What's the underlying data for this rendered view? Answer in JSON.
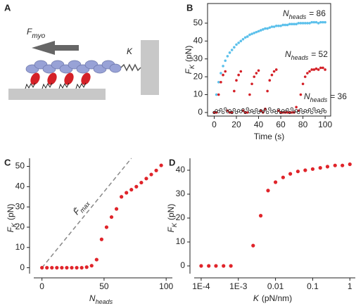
{
  "diagram": {
    "panel_label": "A",
    "force_label": {
      "text": "F",
      "subscript": "myo"
    },
    "spring_label": "K"
  },
  "chart_data": [
    {
      "type": "scatter",
      "panel_label": "B",
      "x_label": "Time (s)",
      "y_label": {
        "text": "F",
        "subscript": "K",
        "unit": "(pN)"
      },
      "x": [
        0,
        2,
        4,
        6,
        8,
        10,
        12,
        14,
        16,
        18,
        20,
        22,
        24,
        26,
        28,
        30,
        32,
        34,
        36,
        38,
        40,
        42,
        44,
        46,
        48,
        50,
        52,
        54,
        56,
        58,
        60,
        62,
        64,
        66,
        68,
        70,
        72,
        74,
        76,
        78,
        80,
        82,
        84,
        86,
        88,
        90,
        92,
        94,
        96,
        98,
        100
      ],
      "series": [
        {
          "label": {
            "text": "N",
            "subscript": "heads",
            "rest": "= 86"
          },
          "color": "#5bc0eb",
          "filled": true,
          "values": [
            0,
            10,
            17,
            22,
            26,
            29,
            31.5,
            33.5,
            35,
            36.5,
            38,
            39,
            40,
            41,
            42,
            42.5,
            43.5,
            44,
            44.5,
            45,
            45.5,
            46,
            46.5,
            47,
            47,
            47.5,
            48,
            48,
            48.5,
            48.5,
            48.5,
            49,
            49,
            49,
            49.5,
            49.5,
            49.5,
            49.5,
            50,
            50,
            50,
            50,
            50,
            50,
            50.5,
            50.5,
            50.5,
            50,
            50.5,
            50.5,
            50.5
          ]
        },
        {
          "label": {
            "text": "N",
            "subscript": "heads",
            "rest": "= 52"
          },
          "color": "#d42027",
          "filled": true,
          "values": [
            0,
            0,
            10,
            17,
            21,
            23,
            1,
            0,
            0,
            12,
            18,
            21,
            23,
            1,
            0,
            0,
            10,
            16,
            20,
            22,
            23.5,
            1,
            0,
            2,
            12,
            18,
            21,
            23,
            24,
            1,
            0,
            0,
            0,
            0,
            0,
            0,
            0,
            3,
            1,
            10,
            16,
            20,
            22,
            23,
            24,
            24,
            24.5,
            24,
            25,
            25,
            24
          ]
        },
        {
          "label": {
            "text": "N",
            "subscript": "heads",
            "rest": "= 36"
          },
          "color": "#222222",
          "filled": false,
          "values": [
            0,
            1,
            0.5,
            1.5,
            0,
            2,
            0.5,
            1,
            0,
            1.5,
            0,
            1,
            0.5,
            1.5,
            0,
            2,
            0.5,
            1,
            0,
            1.5,
            0,
            1,
            0.5,
            1.5,
            0,
            2,
            0.5,
            1,
            0,
            1.5,
            0,
            1,
            0.5,
            1.5,
            0,
            2,
            0.5,
            1,
            0,
            1.5,
            0,
            1,
            0.5,
            1.5,
            0,
            2,
            0.5,
            1,
            0,
            1.5,
            0.5
          ]
        }
      ],
      "xlim": [
        -6,
        105
      ],
      "ylim": [
        -2,
        61
      ],
      "xticks": [
        0,
        20,
        40,
        60,
        80,
        100
      ],
      "yticks": [
        0,
        10,
        20,
        30,
        40,
        50
      ]
    },
    {
      "type": "scatter",
      "panel_label": "C",
      "x_label": {
        "text": "N",
        "subscript": "heads"
      },
      "y_label": {
        "text": "F",
        "subscript": "K",
        "unit": "(pN)"
      },
      "x": [
        0,
        4,
        8,
        12,
        16,
        20,
        24,
        28,
        32,
        36,
        40,
        44,
        48,
        52,
        56,
        60,
        64,
        68,
        72,
        76,
        80,
        84,
        88,
        92,
        96
      ],
      "values": [
        0,
        0,
        0,
        0,
        0,
        0,
        0,
        0,
        0,
        0.3,
        1,
        4,
        14,
        20,
        25,
        29,
        35,
        37,
        38.5,
        40,
        42,
        44,
        46,
        48,
        50.5
      ],
      "color": "#e0242a",
      "reference_line": {
        "label": {
          "text": "F̄",
          "subscript": "max"
        },
        "x": [
          0,
          72
        ],
        "y": [
          0,
          54
        ],
        "color": "#888888"
      },
      "xlim": [
        -10,
        105
      ],
      "ylim": [
        -5,
        54
      ],
      "xticks": [
        0,
        50,
        100
      ],
      "yticks": [
        0,
        10,
        20,
        30,
        40,
        50
      ]
    },
    {
      "type": "scatter",
      "panel_label": "D",
      "x_label": {
        "text": "K",
        "unit": "(pN/nm)"
      },
      "y_label": {
        "text": "F",
        "subscript": "K",
        "unit": "(pN)"
      },
      "log_x": true,
      "x": [
        0.0001,
        0.00016,
        0.00025,
        0.0004,
        0.00063,
        0.0025,
        0.004,
        0.0063,
        0.01,
        0.016,
        0.025,
        0.04,
        0.063,
        0.1,
        0.16,
        0.25,
        0.4,
        0.63,
        1
      ],
      "values": [
        0,
        0,
        0,
        0,
        0,
        8.5,
        21,
        31.5,
        35,
        37,
        38.5,
        39.5,
        40,
        40.5,
        41,
        41.5,
        42,
        42,
        42.5
      ],
      "color": "#e0242a",
      "xlim": [
        5e-05,
        1.4
      ],
      "ylim": [
        -5,
        45
      ],
      "xticks": [
        {
          "value": 0.0001,
          "label": "1E-4"
        },
        {
          "value": 0.001,
          "label": "1E-3"
        },
        0.01,
        0.1,
        1
      ],
      "yticks": [
        0,
        10,
        20,
        30,
        40
      ]
    }
  ]
}
